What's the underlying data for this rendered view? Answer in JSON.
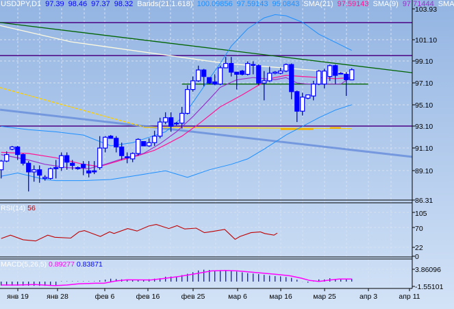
{
  "header": {
    "symbol": "USDJPY,D1",
    "ohlc": [
      "97.39",
      "98.46",
      "97.37",
      "98.32"
    ],
    "bands_label": "Bands(21,1.618)",
    "bands_values": [
      "100.09856",
      "97.59143",
      "95.0843"
    ],
    "sma21_label": "SMA(21)",
    "sma21_value": "97.59143",
    "sma9_label": "SMA(9)",
    "sma9_value": "97.71444",
    "extra_label": "SMA("
  },
  "colors": {
    "background_top": "#93b4e2",
    "background_bottom": "#cfe0f6",
    "ohlc": "#0000ff",
    "bands": "#1e90ff",
    "sma21": "#ff1493",
    "sma9": "#9932cc",
    "candle_bear": "#0000ff",
    "candle_bull_fill": "#ffffff",
    "trend_green": "#006400",
    "trend_blue": "#6a8fdc",
    "level_purple": "#4b0082",
    "cream_line": "#fffbe0",
    "yellow_line": "#ffd000",
    "rsi_line": "#c00000",
    "macd_hist": "#0000ff",
    "macd_signal": "#ff00ff"
  },
  "price_axis": {
    "labels": [
      "103.93",
      "101.10",
      "99.10",
      "97.10",
      "95.10",
      "93.10",
      "91.10",
      "89.10",
      "86.31"
    ],
    "range": [
      86.31,
      103.93
    ]
  },
  "rsi": {
    "label": "RSI(14)",
    "value": "56",
    "levels": [
      "105",
      "70",
      "22",
      "0"
    ],
    "points": [
      [
        0,
        43
      ],
      [
        1.7,
        51
      ],
      [
        4,
        40
      ],
      [
        6.3,
        37
      ],
      [
        8.5,
        51
      ],
      [
        9.8,
        46
      ],
      [
        12.7,
        44
      ],
      [
        14.2,
        59
      ],
      [
        15.2,
        62
      ],
      [
        18.1,
        48
      ],
      [
        19.8,
        59
      ],
      [
        20.6,
        55
      ],
      [
        23.1,
        67
      ],
      [
        24.8,
        61
      ],
      [
        26.9,
        73
      ],
      [
        28.3,
        77
      ],
      [
        30.6,
        67
      ],
      [
        32.1,
        74
      ],
      [
        33.5,
        66
      ],
      [
        35.6,
        68
      ],
      [
        37.1,
        57
      ],
      [
        38.6,
        60
      ],
      [
        40.8,
        65
      ],
      [
        41.9,
        51
      ],
      [
        42.7,
        41
      ],
      [
        43.6,
        48
      ],
      [
        45.6,
        57
      ],
      [
        47.3,
        59
      ],
      [
        48.1,
        55
      ],
      [
        49.8,
        51
      ],
      [
        50.4,
        56
      ]
    ]
  },
  "macd": {
    "label": "MACD(5,26,5)",
    "value1": "0.89277",
    "value2": "0.83871",
    "levels": [
      "3.86096",
      "-1.55101"
    ],
    "hist_points": [
      [
        0,
        -1.2
      ],
      [
        6,
        -1.3
      ],
      [
        10,
        -1.3
      ],
      [
        11,
        0.1
      ],
      [
        17,
        0.1
      ],
      [
        19,
        0.6
      ],
      [
        20,
        0.9
      ],
      [
        23,
        0.6
      ],
      [
        26.2,
        0.6
      ],
      [
        28,
        0.9
      ],
      [
        29.1,
        1.05
      ],
      [
        30.2,
        1.6
      ],
      [
        32,
        1.5
      ],
      [
        33,
        2.0
      ],
      [
        34.2,
        2.5
      ],
      [
        35.2,
        3.0
      ],
      [
        36.3,
        3.6
      ],
      [
        37.3,
        3.7
      ],
      [
        39.4,
        3.4
      ],
      [
        40.5,
        3.6
      ],
      [
        42.6,
        3.2
      ],
      [
        45,
        2.6
      ],
      [
        47.1,
        2.3
      ],
      [
        49.2,
        1.8
      ],
      [
        51.2,
        1.6
      ],
      [
        53.2,
        1.1
      ],
      [
        54.3,
        0.4
      ],
      [
        55.1,
        -0.1
      ],
      [
        56.1,
        -0.35
      ],
      [
        57.1,
        0.1
      ],
      [
        58.2,
        0.8
      ],
      [
        59.3,
        0.6
      ],
      [
        60.1,
        1.1
      ],
      [
        61.1,
        0.8
      ],
      [
        62.2,
        0.9
      ],
      [
        64,
        0.9
      ]
    ],
    "signal_points": [
      [
        0,
        -1.05
      ],
      [
        3,
        -1.05
      ],
      [
        6.1,
        -0.9
      ],
      [
        7.7,
        -1.05
      ],
      [
        9.8,
        -1.25
      ],
      [
        12,
        -1.05
      ],
      [
        14.1,
        -0.7
      ],
      [
        17.2,
        -0.5
      ],
      [
        18.8,
        -0.5
      ],
      [
        20.9,
        0.2
      ],
      [
        23,
        0.55
      ],
      [
        27.3,
        0.5
      ],
      [
        29.4,
        0.9
      ],
      [
        32.6,
        1.6
      ],
      [
        35.7,
        2.5
      ],
      [
        38.4,
        3.3
      ],
      [
        41,
        3.45
      ],
      [
        43.1,
        3.3
      ],
      [
        45.8,
        2.9
      ],
      [
        47.9,
        2.6
      ],
      [
        50.5,
        2.2
      ],
      [
        52.7,
        1.8
      ],
      [
        54.8,
        1.05
      ],
      [
        56.3,
        0.35
      ],
      [
        58,
        0.05
      ],
      [
        60.1,
        0.5
      ],
      [
        61.7,
        0.8
      ],
      [
        64,
        0.8
      ]
    ]
  },
  "date_axis": {
    "labels": [
      "янв 19",
      "янв 28",
      "фев 6",
      "фев 16",
      "фев 25",
      "мар 6",
      "мар 16",
      "мар 25",
      "апр 3",
      "апр 11"
    ]
  },
  "candles": [
    [
      89.1,
      90.0,
      88.3,
      89.9
    ],
    [
      89.9,
      90.8,
      89.8,
      90.5
    ],
    [
      91.0,
      91.3,
      90.9,
      91.2
    ],
    [
      91.2,
      91.3,
      90.0,
      90.5
    ],
    [
      90.5,
      90.6,
      89.5,
      89.7
    ],
    [
      89.7,
      89.9,
      87.1,
      88.9
    ],
    [
      88.9,
      89.5,
      88.0,
      89.1
    ],
    [
      89.1,
      89.5,
      87.9,
      88.6
    ],
    [
      88.3,
      88.6,
      88.1,
      88.4
    ],
    [
      88.3,
      89.3,
      88.2,
      89.2
    ],
    [
      89.3,
      90.0,
      88.3,
      89.2
    ],
    [
      89.3,
      90.7,
      89.0,
      90.4
    ],
    [
      90.4,
      90.7,
      89.1,
      89.8
    ],
    [
      89.7,
      90.0,
      89.1,
      89.5
    ],
    [
      89.3,
      89.4,
      89.1,
      89.2
    ],
    [
      89.6,
      89.9,
      88.6,
      89.3
    ],
    [
      89.0,
      89.9,
      88.4,
      88.8
    ],
    [
      89.0,
      89.9,
      88.7,
      88.9
    ],
    [
      89.3,
      92.2,
      89.1,
      91.1
    ],
    [
      91.1,
      92.2,
      90.7,
      92.1
    ],
    [
      92.2,
      92.3,
      92.0,
      92.0
    ],
    [
      92.0,
      92.2,
      90.7,
      91.2
    ],
    [
      91.2,
      91.6,
      90.0,
      90.4
    ],
    [
      90.3,
      90.7,
      89.7,
      90.2
    ],
    [
      90.1,
      90.7,
      89.8,
      90.6
    ],
    [
      90.6,
      92.0,
      90.4,
      91.9
    ],
    [
      91.7,
      91.7,
      91.3,
      91.3
    ],
    [
      91.3,
      92.0,
      91.2,
      91.6
    ],
    [
      91.6,
      92.7,
      91.3,
      92.2
    ],
    [
      92.2,
      93.9,
      92.0,
      93.5
    ],
    [
      93.5,
      94.4,
      93.3,
      93.9
    ],
    [
      93.9,
      94.4,
      92.6,
      93.1
    ],
    [
      93.4,
      93.5,
      93.2,
      93.4
    ],
    [
      93.4,
      94.9,
      92.9,
      94.3
    ],
    [
      94.3,
      96.9,
      94.2,
      96.5
    ],
    [
      96.5,
      97.7,
      96.3,
      97.3
    ],
    [
      97.3,
      98.7,
      97.2,
      98.3
    ],
    [
      98.3,
      98.4,
      96.8,
      97.7
    ],
    [
      97.6,
      97.6,
      97.0,
      97.1
    ],
    [
      97.2,
      97.9,
      96.9,
      97.0
    ],
    [
      97.0,
      98.7,
      96.9,
      98.5
    ],
    [
      98.5,
      99.5,
      98.5,
      98.9
    ],
    [
      98.9,
      99.5,
      97.7,
      98.1
    ],
    [
      98.1,
      98.1,
      96.5,
      97.9
    ],
    [
      98.2,
      98.3,
      97.8,
      97.9
    ],
    [
      97.9,
      99.1,
      97.8,
      98.9
    ],
    [
      98.8,
      99.1,
      97.9,
      98.8
    ],
    [
      98.7,
      98.8,
      96.9,
      97.1
    ],
    [
      97.1,
      98.2,
      95.5,
      97.3
    ],
    [
      97.3,
      98.6,
      97.2,
      98.0
    ],
    [
      98.0,
      98.2,
      97.9,
      98.1
    ],
    [
      98.0,
      98.5,
      97.9,
      98.2
    ],
    [
      98.2,
      98.9,
      98.1,
      98.8
    ],
    [
      98.8,
      98.9,
      95.6,
      96.3
    ],
    [
      96.3,
      96.4,
      93.5,
      94.5
    ],
    [
      94.5,
      96.2,
      94.1,
      95.8
    ],
    [
      95.7,
      96.0,
      95.6,
      96.0
    ],
    [
      95.9,
      97.3,
      95.5,
      97.0
    ],
    [
      97.0,
      98.3,
      96.9,
      98.2
    ],
    [
      97.0,
      98.4,
      96.6,
      98.2
    ],
    [
      97.7,
      98.8,
      97.3,
      98.7
    ],
    [
      98.7,
      98.8,
      97.0,
      97.8
    ],
    [
      98.0,
      98.1,
      97.9,
      98.0
    ],
    [
      97.9,
      98.1,
      95.9,
      97.4
    ],
    [
      97.39,
      98.46,
      97.37,
      98.32
    ]
  ],
  "overlays": {
    "bands_upper": [
      [
        0,
        93.1
      ],
      [
        5,
        92.8
      ],
      [
        10,
        92.6
      ],
      [
        15,
        92.3
      ],
      [
        20,
        91.3
      ],
      [
        24,
        91.6
      ],
      [
        27,
        92.1
      ],
      [
        30,
        92.6
      ],
      [
        33,
        93.9
      ],
      [
        35,
        95.3
      ],
      [
        38,
        97.5
      ],
      [
        40,
        98.9
      ],
      [
        42,
        100.5
      ],
      [
        45,
        102.1
      ],
      [
        48,
        103.1
      ],
      [
        50,
        103.4
      ],
      [
        52,
        103.3
      ],
      [
        55,
        102.7
      ],
      [
        58,
        101.6
      ],
      [
        62,
        100.6
      ],
      [
        64,
        100.1
      ]
    ],
    "bands_middle": [
      [
        0,
        90.7
      ],
      [
        5,
        90.6
      ],
      [
        10,
        90.2
      ],
      [
        15,
        89.6
      ],
      [
        18,
        89.4
      ],
      [
        22,
        90.0
      ],
      [
        25,
        90.4
      ],
      [
        28,
        90.9
      ],
      [
        30,
        91.4
      ],
      [
        33,
        92.2
      ],
      [
        36,
        93.3
      ],
      [
        40,
        94.9
      ],
      [
        44,
        96.0
      ],
      [
        47,
        96.9
      ],
      [
        49,
        97.5
      ],
      [
        52,
        97.8
      ],
      [
        55,
        97.7
      ],
      [
        58,
        97.6
      ],
      [
        61,
        97.5
      ],
      [
        64,
        97.6
      ]
    ],
    "bands_lower": [
      [
        0,
        88.5
      ],
      [
        3,
        88.8
      ],
      [
        8,
        88.2
      ],
      [
        10,
        88.1
      ],
      [
        15,
        88.1
      ],
      [
        20,
        88.2
      ],
      [
        25,
        88.6
      ],
      [
        30,
        89.0
      ],
      [
        34,
        88.4
      ],
      [
        38,
        89.1
      ],
      [
        42,
        89.6
      ],
      [
        45,
        90.1
      ],
      [
        48,
        91.0
      ],
      [
        52,
        92.3
      ],
      [
        55,
        93.1
      ],
      [
        58,
        93.9
      ],
      [
        61,
        94.6
      ],
      [
        64,
        95.1
      ]
    ],
    "sma9": [
      [
        0,
        90.5
      ],
      [
        5,
        90.0
      ],
      [
        8,
        89.6
      ],
      [
        12,
        89.3
      ],
      [
        16,
        89.2
      ],
      [
        19,
        89.6
      ],
      [
        22,
        90.1
      ],
      [
        26,
        90.6
      ],
      [
        29,
        91.5
      ],
      [
        32,
        92.6
      ],
      [
        35,
        94.0
      ],
      [
        38,
        95.6
      ],
      [
        40,
        96.7
      ],
      [
        43,
        97.4
      ],
      [
        46,
        97.6
      ],
      [
        48,
        97.5
      ],
      [
        50,
        97.4
      ],
      [
        52,
        97.6
      ],
      [
        54,
        97.1
      ],
      [
        56,
        97.0
      ],
      [
        62,
        97.0
      ],
      [
        64,
        97.7
      ]
    ],
    "trend_green": [
      [
        -0.2,
        102.67
      ],
      [
        75,
        98.05
      ]
    ],
    "trend_blue": [
      [
        -0.2,
        94.64
      ],
      [
        75,
        90.29
      ]
    ],
    "cream_line": [
      [
        -0.2,
        102.4
      ],
      [
        12.7,
        100.9
      ],
      [
        41,
        98.9
      ],
      [
        64,
        98.0
      ]
    ],
    "yellow_dashed": [
      [
        -0.2,
        96.67
      ],
      [
        26,
        93.06
      ]
    ],
    "yellow_solid": [
      [
        26,
        93.0
      ],
      [
        64,
        92.9
      ]
    ],
    "orange_segments": [
      [
        [
          51,
          92.85
        ],
        [
          57,
          92.85
        ]
      ],
      [
        [
          60,
          92.95
        ],
        [
          62,
          92.95
        ]
      ]
    ],
    "levels": [
      102.67,
      99.63,
      93.13
    ],
    "green_level": [
      [
        33,
        97.0
      ],
      [
        67,
        97.0
      ]
    ]
  }
}
